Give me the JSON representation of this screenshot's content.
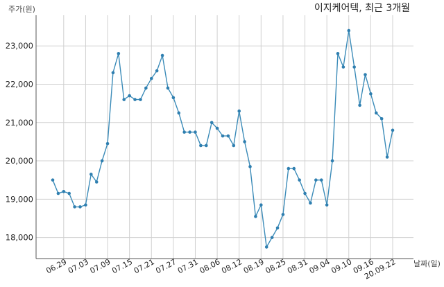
{
  "chart_data": {
    "type": "line",
    "title": "이지케어텍, 최근 3개월",
    "ylabel": "주가(원)",
    "xlabel": "날짜(일)",
    "ylim": [
      17450,
      23800
    ],
    "grid": true,
    "y_ticks": [
      18000,
      19000,
      20000,
      21000,
      22000,
      23000
    ],
    "y_tick_labels": [
      "18,000",
      "19,000",
      "20,000",
      "21,000",
      "22,000",
      "23,000"
    ],
    "x_tick_labels": [
      "06.29",
      "07.03",
      "07.09",
      "07.15",
      "07.21",
      "07.27",
      "07.31",
      "08.06",
      "08.12",
      "08.19",
      "08.25",
      "08.31",
      "09.04",
      "09.10",
      "09.16",
      "20.09.22"
    ],
    "x_tick_indices": [
      2,
      6,
      10,
      14,
      18,
      22,
      26,
      30,
      34,
      38,
      42,
      46,
      50,
      54,
      58,
      62
    ],
    "series": [
      {
        "color": "#3b8bb8",
        "values": [
          19500,
          19150,
          19200,
          19150,
          18800,
          18800,
          18850,
          19650,
          19450,
          20000,
          20450,
          22300,
          22800,
          21600,
          21700,
          21600,
          21600,
          21900,
          22150,
          22350,
          22750,
          21900,
          21650,
          21250,
          20750,
          20750,
          20750,
          20400,
          20400,
          21000,
          20850,
          20650,
          20650,
          20400,
          21300,
          20500,
          19850,
          18550,
          18850,
          17750,
          18000,
          18250,
          18600,
          19800,
          19800,
          19500,
          19150,
          18900,
          19500,
          19500,
          18850,
          20000,
          22800,
          22450,
          23400,
          22450,
          21450,
          22250,
          21750,
          21250,
          21100,
          20100,
          20800
        ]
      }
    ]
  }
}
